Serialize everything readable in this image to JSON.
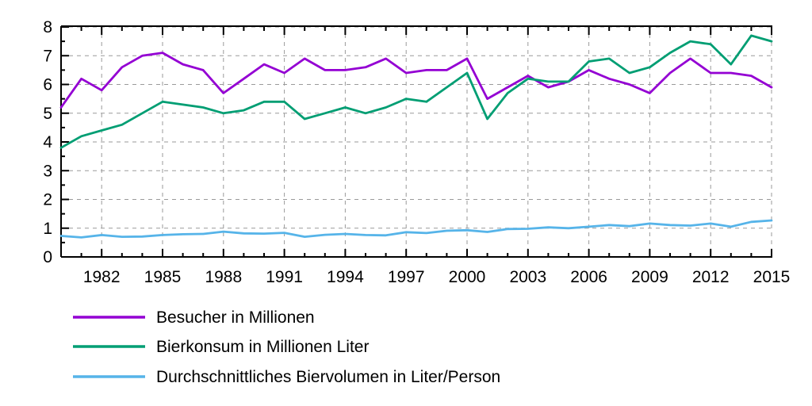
{
  "chart_data": {
    "type": "line",
    "title": "",
    "xlabel": "",
    "ylabel": "",
    "x": [
      1980,
      1981,
      1982,
      1983,
      1984,
      1985,
      1986,
      1987,
      1988,
      1989,
      1990,
      1991,
      1992,
      1993,
      1994,
      1995,
      1996,
      1997,
      1998,
      1999,
      2000,
      2001,
      2002,
      2003,
      2004,
      2005,
      2006,
      2007,
      2008,
      2009,
      2010,
      2011,
      2012,
      2013,
      2014,
      2015
    ],
    "series": [
      {
        "name": "Besucher in Millionen",
        "color": "#9400d3",
        "values": [
          5.2,
          6.2,
          5.8,
          6.6,
          7.0,
          7.1,
          6.7,
          6.5,
          5.7,
          6.2,
          6.7,
          6.4,
          6.9,
          6.5,
          6.5,
          6.6,
          6.9,
          6.4,
          6.5,
          6.5,
          6.9,
          5.5,
          5.9,
          6.3,
          5.9,
          6.1,
          6.5,
          6.2,
          6.0,
          5.7,
          6.4,
          6.9,
          6.4,
          6.4,
          6.3,
          5.9
        ]
      },
      {
        "name": "Bierkonsum in Millionen Liter",
        "color": "#009e73",
        "values": [
          3.8,
          4.2,
          4.4,
          4.6,
          5.0,
          5.4,
          5.3,
          5.2,
          5.0,
          5.1,
          5.4,
          5.4,
          4.8,
          5.0,
          5.2,
          5.0,
          5.2,
          5.5,
          5.4,
          5.9,
          6.4,
          4.8,
          5.7,
          6.2,
          6.1,
          6.1,
          6.8,
          6.9,
          6.4,
          6.6,
          7.1,
          7.5,
          7.4,
          6.7,
          7.7,
          7.5
        ]
      },
      {
        "name": "Durchschnittliches Biervolumen in Liter/Person",
        "color": "#56b4e9",
        "values": [
          0.73,
          0.68,
          0.76,
          0.7,
          0.71,
          0.76,
          0.79,
          0.8,
          0.88,
          0.82,
          0.81,
          0.84,
          0.7,
          0.77,
          0.8,
          0.76,
          0.75,
          0.86,
          0.83,
          0.91,
          0.93,
          0.87,
          0.97,
          0.98,
          1.03,
          1.0,
          1.05,
          1.11,
          1.07,
          1.16,
          1.11,
          1.09,
          1.16,
          1.05,
          1.22,
          1.27
        ]
      }
    ],
    "xticks": [
      1982,
      1985,
      1988,
      1991,
      1994,
      1997,
      2000,
      2003,
      2006,
      2009,
      2012,
      2015
    ],
    "yticks": [
      0,
      1,
      2,
      3,
      4,
      5,
      6,
      7,
      8
    ],
    "xlim": [
      1980,
      2015
    ],
    "ylim": [
      0,
      8
    ],
    "grid": true,
    "grid_color": "#9a9a9a",
    "axis_color": "#000000",
    "legend_position": "bottom-left"
  }
}
